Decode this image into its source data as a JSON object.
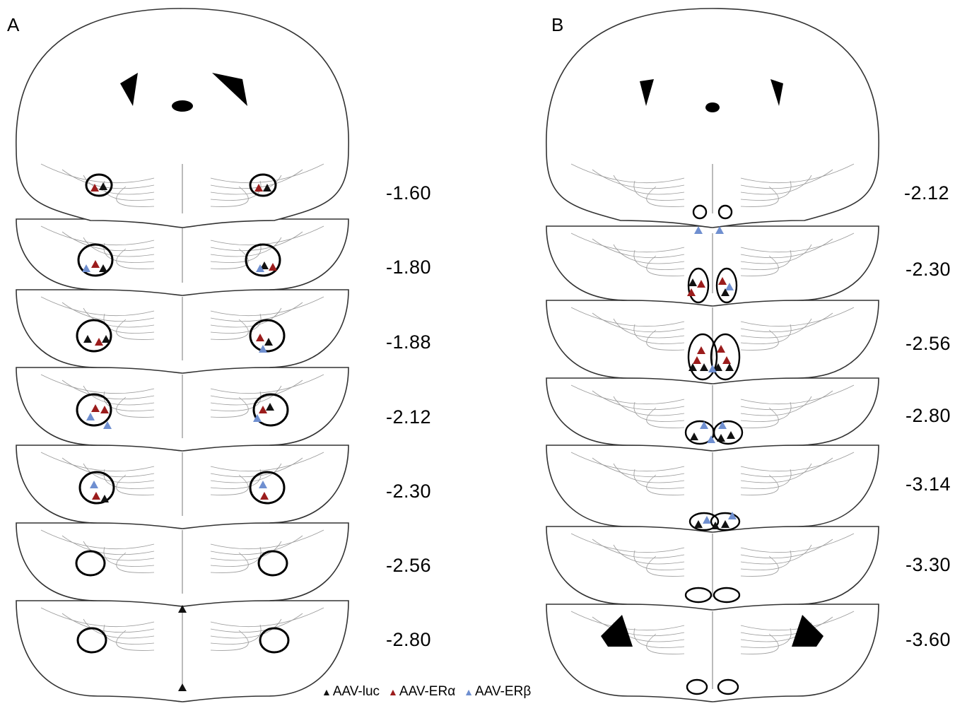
{
  "panels": [
    {
      "letter": "A",
      "sections": [
        "-1.60",
        "-1.80",
        "-1.88",
        "-2.12",
        "-2.30",
        "-2.56",
        "-2.80"
      ]
    },
    {
      "letter": "B",
      "sections": [
        "-2.12",
        "-2.30",
        "-2.56",
        "-2.80",
        "-3.14",
        "-3.30",
        "-3.60"
      ]
    }
  ],
  "legend": [
    {
      "glyph": "▲",
      "label": "AAV-luc",
      "color": "#111111"
    },
    {
      "glyph": "▲",
      "label": "AAV-ERα",
      "color": "#9b1c1c"
    },
    {
      "glyph": "▲",
      "label": "AAV-ERβ",
      "color": "#6f8fd0"
    }
  ],
  "colors": {
    "outline": "#333333",
    "region_outline": "#000000",
    "ventricle_fill": "#000000"
  }
}
